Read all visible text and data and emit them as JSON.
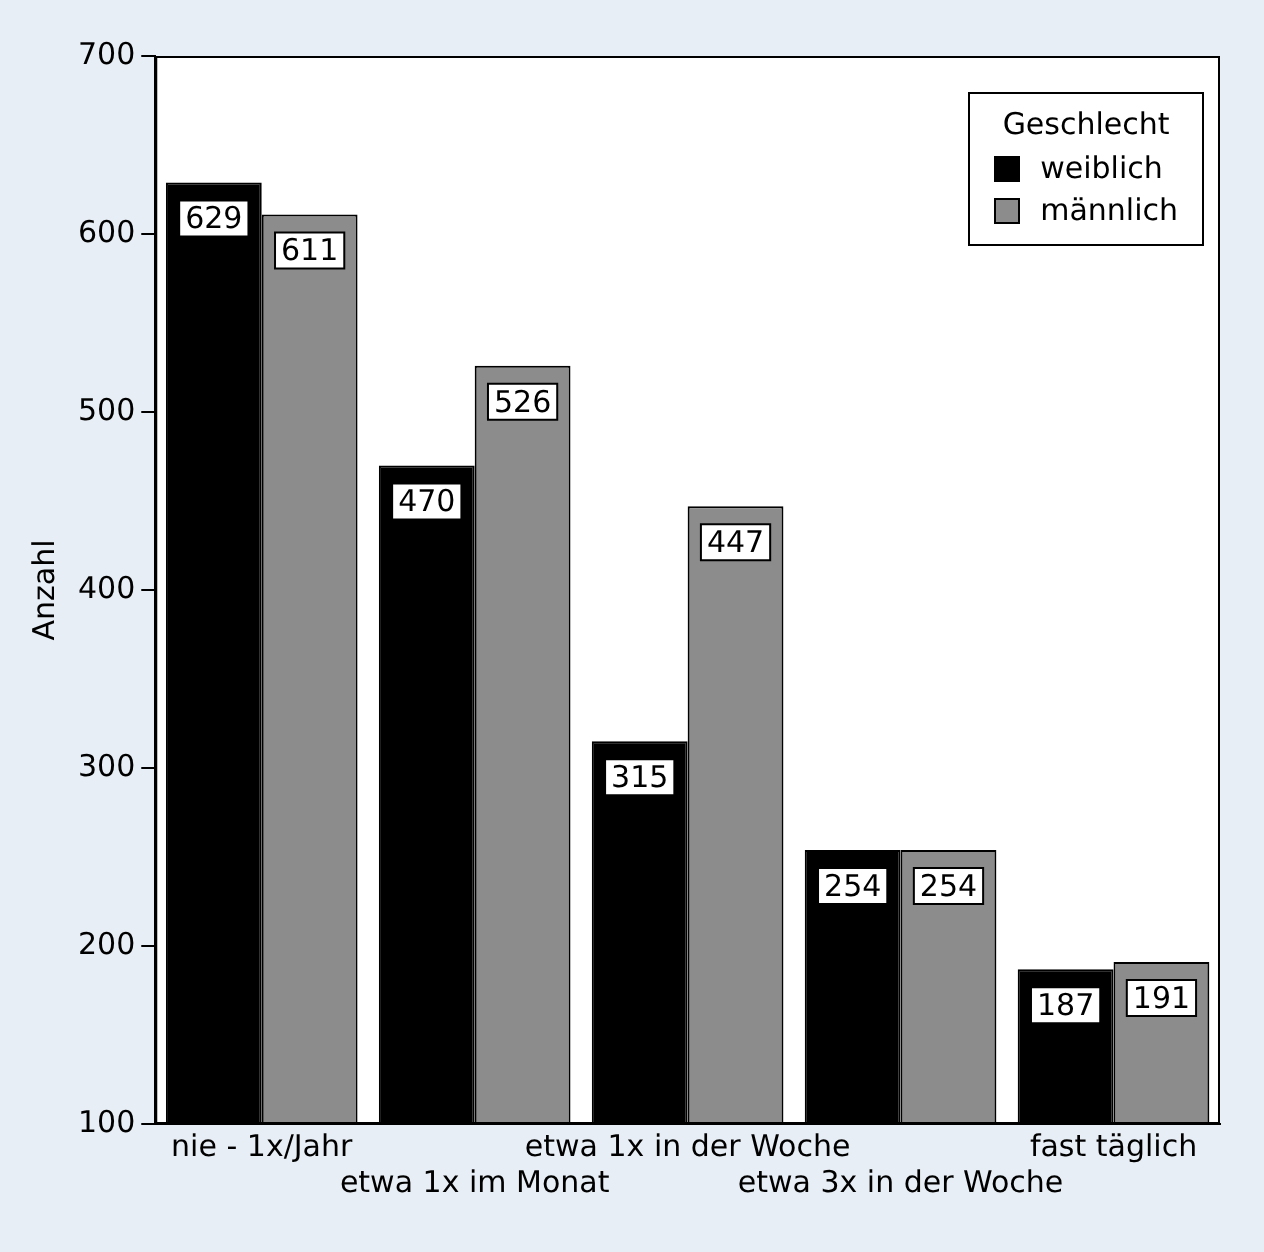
{
  "chart_data": {
    "type": "bar",
    "ylabel": "Anzahl",
    "legend_title": "Geschlecht",
    "legend": "top right",
    "grid": false,
    "data_labels": true,
    "categories": [
      "nie - 1x/Jahr",
      "etwa 1x im Monat",
      "etwa 1x in der Woche",
      "etwa 3x in der Woche",
      "fast täglich"
    ],
    "series": [
      {
        "name": "weiblich",
        "color": "#000000",
        "values": [
          629,
          470,
          315,
          254,
          187
        ]
      },
      {
        "name": "männlich",
        "color": "#8c8c8c",
        "values": [
          611,
          526,
          447,
          254,
          191
        ]
      }
    ],
    "ylim": [
      100,
      700
    ],
    "yticks": [
      100,
      200,
      300,
      400,
      500,
      600,
      700
    ]
  }
}
